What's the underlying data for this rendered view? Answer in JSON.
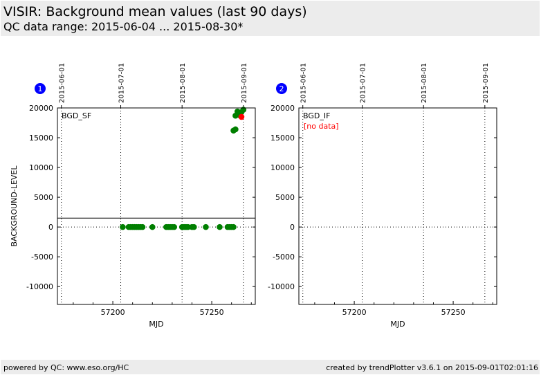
{
  "header": {
    "title": "VISIR: Background mean values (last 90 days)",
    "subtitle": "QC data range: 2015-06-04 ... 2015-08-30*"
  },
  "footer": {
    "left": "powered by QC: www.eso.org/HC",
    "right": "created by trendPlotter v3.6.1 on 2015-09-01T02:01:16"
  },
  "colors": {
    "header_bg": "#ececec",
    "point_green": "#007f00",
    "point_red": "#ff0000",
    "no_data_red": "#ff0000",
    "badge_blue": "#0000ff"
  },
  "chart_data": [
    {
      "type": "scatter",
      "badge": "1",
      "label": "BGD_SF",
      "ylabel": "BACKGROUND-LEVEL",
      "xlabel": "MJD",
      "xlim": [
        57172,
        57272
      ],
      "ylim": [
        -13000,
        20000
      ],
      "xticks": [
        57200,
        57250
      ],
      "yticks": [
        -10000,
        -5000,
        0,
        5000,
        10000,
        15000,
        20000
      ],
      "date_ticks": [
        {
          "label": "2015-06-01",
          "mjd": 57174
        },
        {
          "label": "2015-07-01",
          "mjd": 57204
        },
        {
          "label": "2015-08-01",
          "mjd": 57235
        },
        {
          "label": "2015-09-01",
          "mjd": 57266
        }
      ],
      "reference_line": 1500,
      "series": [
        {
          "color": "green",
          "points": [
            {
              "x": 57205,
              "y": 0
            },
            {
              "x": 57208,
              "y": 0
            },
            {
              "x": 57209,
              "y": 0
            },
            {
              "x": 57210,
              "y": 0
            },
            {
              "x": 57211,
              "y": 0
            },
            {
              "x": 57212,
              "y": 0
            },
            {
              "x": 57213,
              "y": 0
            },
            {
              "x": 57214,
              "y": 0
            },
            {
              "x": 57215,
              "y": 0
            },
            {
              "x": 57220,
              "y": 0
            },
            {
              "x": 57227,
              "y": 0
            },
            {
              "x": 57228,
              "y": 0
            },
            {
              "x": 57229,
              "y": 0
            },
            {
              "x": 57230,
              "y": 0
            },
            {
              "x": 57231,
              "y": 0
            },
            {
              "x": 57235,
              "y": 0
            },
            {
              "x": 57236,
              "y": 0
            },
            {
              "x": 57237,
              "y": 0
            },
            {
              "x": 57238,
              "y": 0
            },
            {
              "x": 57240,
              "y": 0
            },
            {
              "x": 57241,
              "y": 0
            },
            {
              "x": 57247,
              "y": 0
            },
            {
              "x": 57254,
              "y": 0
            },
            {
              "x": 57258,
              "y": 0
            },
            {
              "x": 57259,
              "y": 0
            },
            {
              "x": 57260,
              "y": 0
            },
            {
              "x": 57261,
              "y": 0
            },
            {
              "x": 57261,
              "y": 16200
            },
            {
              "x": 57262,
              "y": 16400
            },
            {
              "x": 57262,
              "y": 18700
            },
            {
              "x": 57263,
              "y": 19400
            },
            {
              "x": 57264,
              "y": 18800
            },
            {
              "x": 57265,
              "y": 19300
            },
            {
              "x": 57266,
              "y": 19700
            }
          ]
        },
        {
          "color": "red",
          "points": [
            {
              "x": 57265,
              "y": 18500
            }
          ]
        }
      ],
      "no_data_text": ""
    },
    {
      "type": "scatter",
      "badge": "2",
      "label": "BGD_IF",
      "ylabel": "",
      "xlabel": "MJD",
      "xlim": [
        57172,
        57272
      ],
      "ylim": [
        -13000,
        20000
      ],
      "xticks": [
        57200,
        57250
      ],
      "yticks": [
        -10000,
        -5000,
        0,
        5000,
        10000,
        15000,
        20000
      ],
      "date_ticks": [
        {
          "label": "2015-06-01",
          "mjd": 57174
        },
        {
          "label": "2015-07-01",
          "mjd": 57204
        },
        {
          "label": "2015-08-01",
          "mjd": 57235
        },
        {
          "label": "2015-09-01",
          "mjd": 57266
        }
      ],
      "reference_line": null,
      "series": [],
      "no_data_text": "[no data]"
    }
  ]
}
